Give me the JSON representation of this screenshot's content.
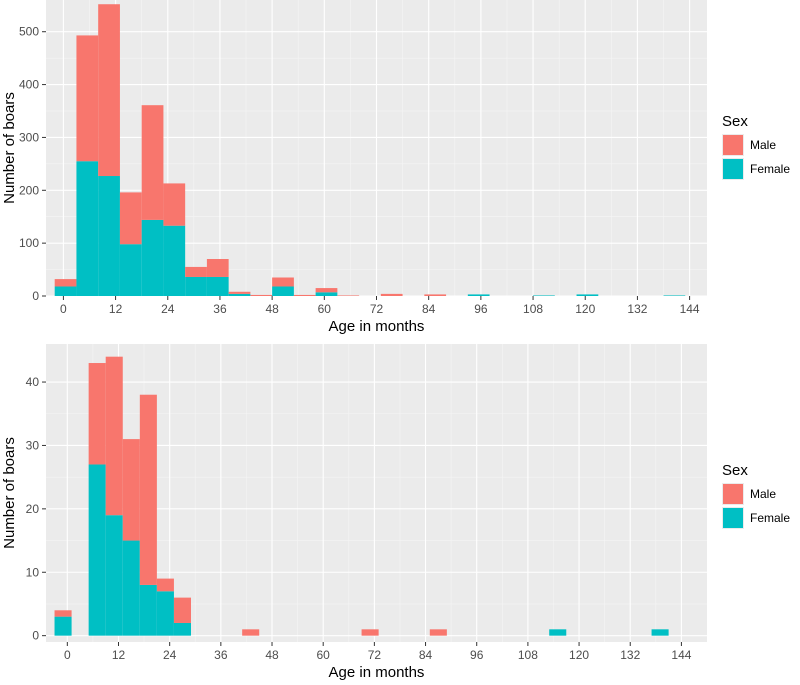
{
  "colors": {
    "male": "#F8766D",
    "female": "#00BFC4",
    "panel": "#EBEBEB",
    "grid_major": "#FFFFFF",
    "grid_minor": "#F5F5F5",
    "tick_text": "#4D4D4D"
  },
  "chart_data": [
    {
      "type": "bar",
      "stacked": true,
      "title": "",
      "xlabel": "Age in months",
      "ylabel": "Number of boars",
      "xlim": [
        -4,
        148
      ],
      "ylim": [
        0,
        560
      ],
      "x_ticks": [
        0,
        12,
        24,
        36,
        48,
        60,
        72,
        84,
        96,
        108,
        120,
        132,
        144
      ],
      "y_ticks": [
        0,
        100,
        200,
        300,
        400,
        500
      ],
      "bin_width": 5,
      "bins_start": [
        -2,
        3,
        8,
        13,
        18,
        23,
        28,
        33,
        38,
        43,
        48,
        53,
        58,
        63,
        68,
        73,
        78,
        83,
        88,
        93,
        98,
        103,
        108,
        113,
        118,
        123,
        128,
        133,
        138
      ],
      "series": [
        {
          "name": "Female",
          "values": [
            18,
            255,
            227,
            98,
            144,
            133,
            36,
            36,
            4,
            0,
            18,
            0,
            7,
            0,
            0,
            0,
            0,
            0,
            0,
            3,
            0,
            0,
            1,
            0,
            3,
            0,
            0,
            0,
            1
          ]
        },
        {
          "name": "Male",
          "values": [
            14,
            238,
            325,
            98,
            217,
            80,
            19,
            34,
            4,
            2,
            17,
            2,
            8,
            1,
            0,
            4,
            0,
            3,
            0,
            0,
            0,
            0,
            0,
            0,
            0,
            0,
            0,
            0,
            0
          ]
        }
      ],
      "legend": {
        "title": "Sex",
        "items": [
          "Male",
          "Female"
        ],
        "placement": "right"
      }
    },
    {
      "type": "bar",
      "stacked": true,
      "title": "",
      "xlabel": "Age in months",
      "ylabel": "Number of boars",
      "xlim": [
        -5,
        150
      ],
      "ylim": [
        -1,
        46
      ],
      "x_ticks": [
        0,
        12,
        24,
        36,
        48,
        60,
        72,
        84,
        96,
        108,
        120,
        132,
        144
      ],
      "y_ticks": [
        0,
        10,
        20,
        30,
        40
      ],
      "bin_width": 4,
      "bins_start": [
        -3,
        1,
        5,
        9,
        13,
        17,
        21,
        25,
        29,
        33,
        37,
        41,
        45,
        49,
        53,
        57,
        61,
        65,
        69,
        73,
        77,
        81,
        85,
        89,
        93,
        97,
        101,
        105,
        109,
        113,
        117,
        121,
        125,
        129,
        133,
        137,
        141
      ],
      "series": [
        {
          "name": "Female",
          "values": [
            3,
            0,
            27,
            19,
            15,
            8,
            7,
            2,
            0,
            0,
            0,
            0,
            0,
            0,
            0,
            0,
            0,
            0,
            0,
            0,
            0,
            0,
            0,
            0,
            0,
            0,
            0,
            0,
            0,
            1,
            0,
            0,
            0,
            0,
            0,
            1,
            0
          ]
        },
        {
          "name": "Male",
          "values": [
            1,
            0,
            16,
            25,
            16,
            30,
            2,
            4,
            0,
            0,
            0,
            1,
            0,
            0,
            0,
            0,
            0,
            0,
            1,
            0,
            0,
            0,
            1,
            0,
            0,
            0,
            0,
            0,
            0,
            0,
            0,
            0,
            0,
            0,
            0,
            0,
            0
          ]
        }
      ],
      "legend": {
        "title": "Sex",
        "items": [
          "Male",
          "Female"
        ],
        "placement": "right"
      }
    }
  ]
}
